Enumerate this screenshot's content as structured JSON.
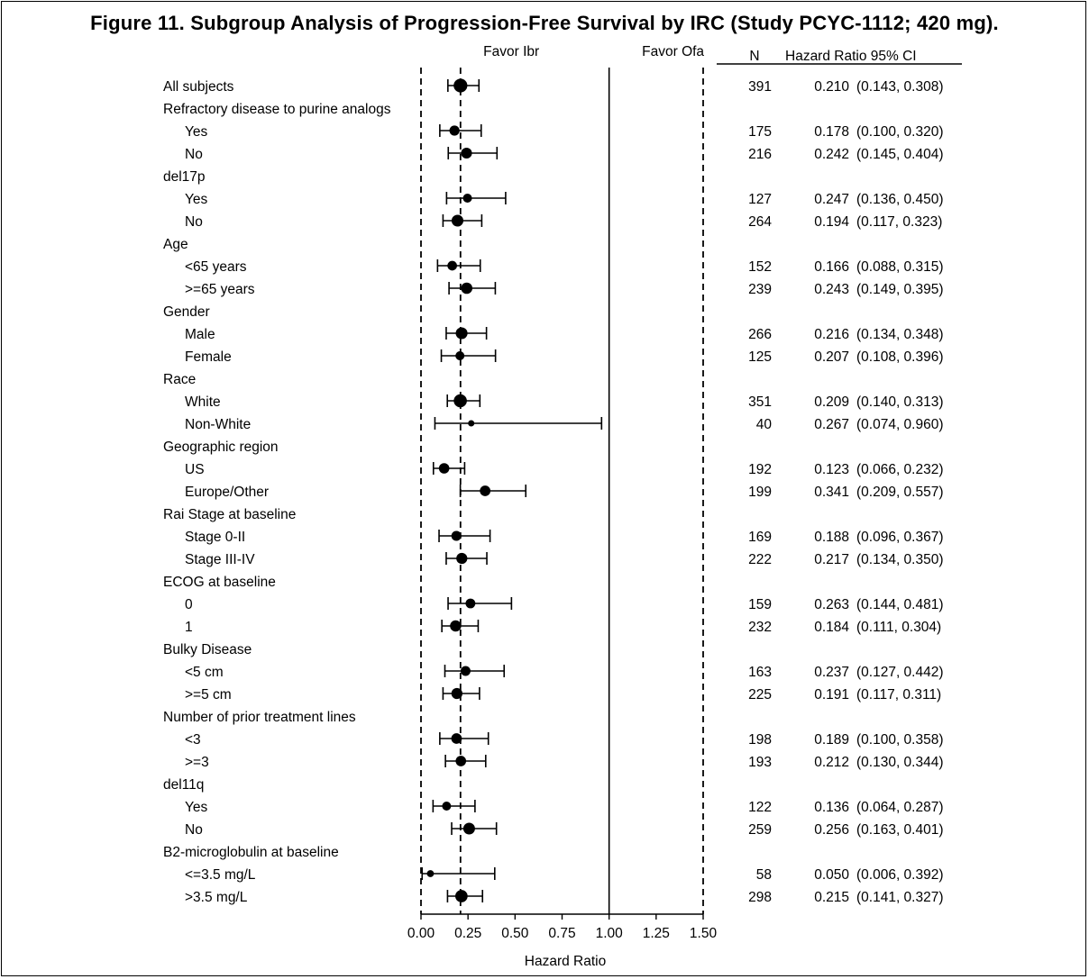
{
  "title": "Figure 11. Subgroup Analysis of Progression-Free Survival by IRC (Study PCYC-1112; 420 mg).",
  "chart_data": {
    "type": "forest",
    "title": "Figure 11. Subgroup Analysis of Progression-Free Survival by IRC (Study PCYC-1112; 420 mg).",
    "xlabel": "Hazard Ratio",
    "xlim": [
      0.0,
      1.5
    ],
    "xticks": [
      "0.00",
      "0.25",
      "0.50",
      "0.75",
      "1.00",
      "1.25",
      "1.50"
    ],
    "reference_lines": [
      0.0,
      0.21,
      1.0,
      1.5
    ],
    "favor_left": "Favor Ibr",
    "favor_right": "Favor Ofa",
    "column_headers": {
      "n": "N",
      "hr_ci": "Hazard Ratio  95% CI"
    },
    "rows": [
      {
        "label": "All subjects",
        "indent": 0,
        "n": "391",
        "hr": 0.21,
        "lo": 0.143,
        "hi": 0.308,
        "hr_text": "0.210",
        "ci_text": "(0.143, 0.308)"
      },
      {
        "label": "Refractory disease to purine analogs",
        "indent": 0
      },
      {
        "label": "Yes",
        "indent": 1,
        "n": "175",
        "hr": 0.178,
        "lo": 0.1,
        "hi": 0.32,
        "hr_text": "0.178",
        "ci_text": "(0.100, 0.320)"
      },
      {
        "label": "No",
        "indent": 1,
        "n": "216",
        "hr": 0.242,
        "lo": 0.145,
        "hi": 0.404,
        "hr_text": "0.242",
        "ci_text": "(0.145, 0.404)"
      },
      {
        "label": "del17p",
        "indent": 0
      },
      {
        "label": "Yes",
        "indent": 1,
        "n": "127",
        "hr": 0.247,
        "lo": 0.136,
        "hi": 0.45,
        "hr_text": "0.247",
        "ci_text": "(0.136, 0.450)"
      },
      {
        "label": "No",
        "indent": 1,
        "n": "264",
        "hr": 0.194,
        "lo": 0.117,
        "hi": 0.323,
        "hr_text": "0.194",
        "ci_text": "(0.117, 0.323)"
      },
      {
        "label": "Age",
        "indent": 0
      },
      {
        "label": "<65 years",
        "indent": 1,
        "n": "152",
        "hr": 0.166,
        "lo": 0.088,
        "hi": 0.315,
        "hr_text": "0.166",
        "ci_text": "(0.088, 0.315)"
      },
      {
        "label": ">=65 years",
        "indent": 1,
        "n": "239",
        "hr": 0.243,
        "lo": 0.149,
        "hi": 0.395,
        "hr_text": "0.243",
        "ci_text": "(0.149, 0.395)"
      },
      {
        "label": "Gender",
        "indent": 0
      },
      {
        "label": "Male",
        "indent": 1,
        "n": "266",
        "hr": 0.216,
        "lo": 0.134,
        "hi": 0.348,
        "hr_text": "0.216",
        "ci_text": "(0.134, 0.348)"
      },
      {
        "label": "Female",
        "indent": 1,
        "n": "125",
        "hr": 0.207,
        "lo": 0.108,
        "hi": 0.396,
        "hr_text": "0.207",
        "ci_text": "(0.108, 0.396)"
      },
      {
        "label": "Race",
        "indent": 0
      },
      {
        "label": "White",
        "indent": 1,
        "n": "351",
        "hr": 0.209,
        "lo": 0.14,
        "hi": 0.313,
        "hr_text": "0.209",
        "ci_text": "(0.140, 0.313)"
      },
      {
        "label": "Non-White",
        "indent": 1,
        "n": "40",
        "hr": 0.267,
        "lo": 0.074,
        "hi": 0.96,
        "hr_text": "0.267",
        "ci_text": "(0.074, 0.960)"
      },
      {
        "label": "Geographic region",
        "indent": 0
      },
      {
        "label": "US",
        "indent": 1,
        "n": "192",
        "hr": 0.123,
        "lo": 0.066,
        "hi": 0.232,
        "hr_text": "0.123",
        "ci_text": "(0.066, 0.232)"
      },
      {
        "label": "Europe/Other",
        "indent": 1,
        "n": "199",
        "hr": 0.341,
        "lo": 0.209,
        "hi": 0.557,
        "hr_text": "0.341",
        "ci_text": "(0.209, 0.557)"
      },
      {
        "label": "Rai Stage at baseline",
        "indent": 0
      },
      {
        "label": "Stage 0-II",
        "indent": 1,
        "n": "169",
        "hr": 0.188,
        "lo": 0.096,
        "hi": 0.367,
        "hr_text": "0.188",
        "ci_text": "(0.096, 0.367)"
      },
      {
        "label": "Stage III-IV",
        "indent": 1,
        "n": "222",
        "hr": 0.217,
        "lo": 0.134,
        "hi": 0.35,
        "hr_text": "0.217",
        "ci_text": "(0.134, 0.350)"
      },
      {
        "label": "ECOG at baseline",
        "indent": 0
      },
      {
        "label": "0",
        "indent": 1,
        "n": "159",
        "hr": 0.263,
        "lo": 0.144,
        "hi": 0.481,
        "hr_text": "0.263",
        "ci_text": "(0.144, 0.481)"
      },
      {
        "label": "1",
        "indent": 1,
        "n": "232",
        "hr": 0.184,
        "lo": 0.111,
        "hi": 0.304,
        "hr_text": "0.184",
        "ci_text": "(0.111, 0.304)"
      },
      {
        "label": "Bulky Disease",
        "indent": 0
      },
      {
        "label": "<5 cm",
        "indent": 1,
        "n": "163",
        "hr": 0.237,
        "lo": 0.127,
        "hi": 0.442,
        "hr_text": "0.237",
        "ci_text": "(0.127, 0.442)"
      },
      {
        "label": ">=5 cm",
        "indent": 1,
        "n": "225",
        "hr": 0.191,
        "lo": 0.117,
        "hi": 0.311,
        "hr_text": "0.191",
        "ci_text": "(0.117, 0.311)"
      },
      {
        "label": "Number of prior treatment lines",
        "indent": 0
      },
      {
        "label": "<3",
        "indent": 1,
        "n": "198",
        "hr": 0.189,
        "lo": 0.1,
        "hi": 0.358,
        "hr_text": "0.189",
        "ci_text": "(0.100, 0.358)"
      },
      {
        "label": ">=3",
        "indent": 1,
        "n": "193",
        "hr": 0.212,
        "lo": 0.13,
        "hi": 0.344,
        "hr_text": "0.212",
        "ci_text": "(0.130, 0.344)"
      },
      {
        "label": "del11q",
        "indent": 0
      },
      {
        "label": "Yes",
        "indent": 1,
        "n": "122",
        "hr": 0.136,
        "lo": 0.064,
        "hi": 0.287,
        "hr_text": "0.136",
        "ci_text": "(0.064, 0.287)"
      },
      {
        "label": "No",
        "indent": 1,
        "n": "259",
        "hr": 0.256,
        "lo": 0.163,
        "hi": 0.401,
        "hr_text": "0.256",
        "ci_text": "(0.163, 0.401)"
      },
      {
        "label": "B2-microglobulin at baseline",
        "indent": 0
      },
      {
        "label": "<=3.5 mg/L",
        "indent": 1,
        "n": "58",
        "hr": 0.05,
        "lo": 0.006,
        "hi": 0.392,
        "hr_text": "0.050",
        "ci_text": "(0.006, 0.392)"
      },
      {
        "label": ">3.5 mg/L",
        "indent": 1,
        "n": "298",
        "hr": 0.215,
        "lo": 0.141,
        "hi": 0.327,
        "hr_text": "0.215",
        "ci_text": "(0.141, 0.327)"
      }
    ]
  }
}
